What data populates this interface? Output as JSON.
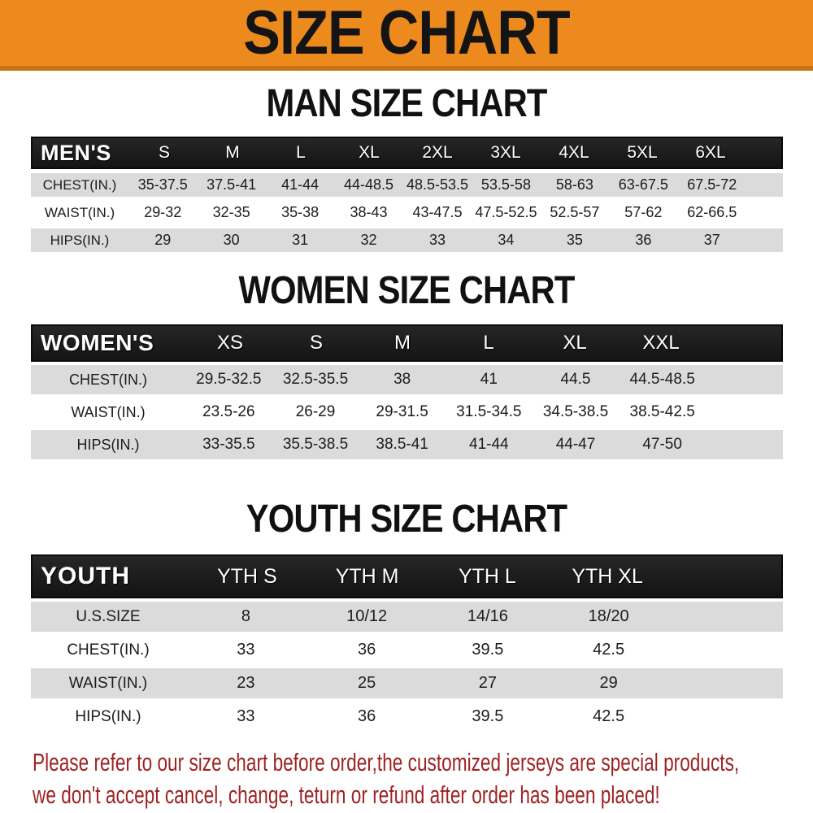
{
  "colors": {
    "banner_orange": "#EC8A1E",
    "banner_edge": "#C9720F",
    "table_header_black": "#1B1B1B",
    "row_gray": "#DBDBDB",
    "note_red": "#9E2323"
  },
  "banner": {
    "title": "SIZE CHART"
  },
  "tables": {
    "men": {
      "heading": "MAN SIZE CHART",
      "header_label": "MEN'S",
      "columns": [
        "S",
        "M",
        "L",
        "XL",
        "2XL",
        "3XL",
        "4XL",
        "5XL",
        "6XL"
      ],
      "rows": [
        {
          "label": "CHEST(IN.)",
          "values": [
            "35-37.5",
            "37.5-41",
            "41-44",
            "44-48.5",
            "48.5-53.5",
            "53.5-58",
            "58-63",
            "63-67.5",
            "67.5-72"
          ]
        },
        {
          "label": "WAIST(IN.)",
          "values": [
            "29-32",
            "32-35",
            "35-38",
            "38-43",
            "43-47.5",
            "47.5-52.5",
            "52.5-57",
            "57-62",
            "62-66.5"
          ]
        },
        {
          "label": "HIPS(IN.)",
          "values": [
            "29",
            "30",
            "31",
            "32",
            "33",
            "34",
            "35",
            "36",
            "37"
          ]
        }
      ]
    },
    "women": {
      "heading": "WOMEN SIZE CHART",
      "header_label": "WOMEN'S",
      "columns": [
        "XS",
        "S",
        "M",
        "L",
        "XL",
        "XXL"
      ],
      "rows": [
        {
          "label": "CHEST(IN.)",
          "values": [
            "29.5-32.5",
            "32.5-35.5",
            "38",
            "41",
            "44.5",
            "44.5-48.5"
          ]
        },
        {
          "label": "WAIST(IN.)",
          "values": [
            "23.5-26",
            "26-29",
            "29-31.5",
            "31.5-34.5",
            "34.5-38.5",
            "38.5-42.5"
          ]
        },
        {
          "label": "HIPS(IN.)",
          "values": [
            "33-35.5",
            "35.5-38.5",
            "38.5-41",
            "41-44",
            "44-47",
            "47-50"
          ]
        }
      ]
    },
    "youth": {
      "heading": "YOUTH SIZE CHART",
      "header_label": "YOUTH",
      "columns": [
        "YTH S",
        "YTH M",
        "YTH L",
        "YTH XL"
      ],
      "rows": [
        {
          "label": "U.S.SIZE",
          "values": [
            "8",
            "10/12",
            "14/16",
            "18/20"
          ]
        },
        {
          "label": "CHEST(IN.)",
          "values": [
            "33",
            "36",
            "39.5",
            "42.5"
          ]
        },
        {
          "label": "WAIST(IN.)",
          "values": [
            "23",
            "25",
            "27",
            "29"
          ]
        },
        {
          "label": "HIPS(IN.)",
          "values": [
            "33",
            "36",
            "39.5",
            "42.5"
          ]
        }
      ]
    }
  },
  "footer": {
    "line1": "Please refer to our size chart before order,the customized jerseys are special products,",
    "line2": "we don't accept cancel, change, teturn or refund after order has been placed!"
  }
}
